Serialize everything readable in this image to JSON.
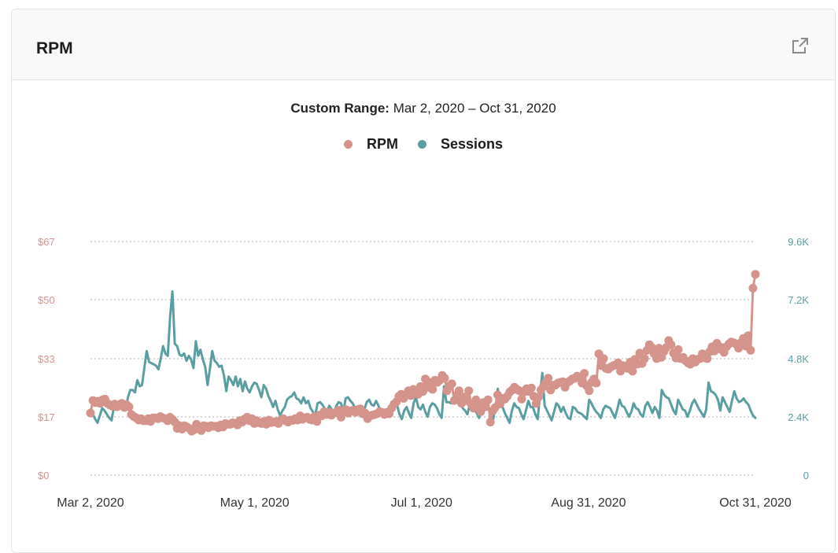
{
  "card": {
    "title": "RPM"
  },
  "icons": {
    "expand": "external-link-icon"
  },
  "range": {
    "label": "Custom Range:",
    "value": "Mar 2, 2020 – Oct 31, 2020"
  },
  "colors": {
    "rpm": "#d4948c",
    "sessions": "#5a9ea2",
    "grid": "#cccccc"
  },
  "chart_data": {
    "type": "line",
    "x_start": "2020-03-02",
    "x_end": "2020-10-31",
    "x_ticks": [
      "Mar 2, 2020",
      "May 1, 2020",
      "Jul 1, 2020",
      "Aug 31, 2020",
      "Oct 31, 2020"
    ],
    "y_left": {
      "ticks": [
        "$0",
        "$17",
        "$33",
        "$50",
        "$67"
      ],
      "range": [
        0,
        67
      ]
    },
    "y_right": {
      "ticks": [
        "0",
        "2.4K",
        "4.8K",
        "7.2K",
        "9.6K"
      ],
      "range": [
        0,
        9600
      ]
    },
    "grid": true,
    "legend_position": "top-center",
    "series": [
      {
        "name": "RPM",
        "axis": "left",
        "markers": true,
        "values": [
          17.8,
          21.4,
          20.8,
          21.2,
          20.6,
          21.6,
          21.8,
          20.6,
          20.1,
          19.8,
          20.4,
          19.6,
          20.2,
          20.6,
          19.4,
          20.2,
          19.6,
          17.4,
          16.8,
          16.4,
          15.8,
          16.2,
          15.6,
          15.6,
          16.2,
          15.4,
          16.4,
          16.4,
          16.2,
          16.8,
          16.4,
          16.2,
          15.6,
          16.6,
          16.0,
          15.2,
          13.4,
          14.2,
          13.2,
          14.2,
          13.8,
          13.4,
          12.6,
          13.0,
          14.6,
          13.6,
          12.8,
          14.2,
          14.0,
          13.6,
          14.2,
          14.0,
          14.0,
          13.6,
          14.4,
          13.8,
          14.8,
          14.6,
          14.6,
          15.0,
          14.8,
          14.4,
          15.6,
          15.2,
          16.1,
          16.6,
          15.6,
          16.2,
          14.8,
          15.6,
          15.0,
          14.8,
          15.4,
          14.6,
          15.8,
          15.1,
          15.2,
          15.4,
          14.8,
          15.8,
          16.2,
          15.6,
          15.2,
          15.8,
          15.7,
          16.2,
          15.8,
          17.0,
          16.0,
          16.4,
          16.6,
          16.0,
          15.8,
          16.8,
          15.4,
          17.2,
          17.0,
          18.2,
          17.4,
          18.0,
          17.2,
          17.8,
          18.0,
          18.6,
          16.6,
          18.4,
          18.8,
          17.8,
          18.4,
          18.6,
          18.0,
          18.8,
          19.0,
          17.6,
          17.8,
          16.2,
          17.0,
          17.2,
          17.4,
          17.6,
          18.2,
          18.0,
          17.4,
          18.0,
          17.6,
          19.2,
          20.4,
          21.0,
          22.6,
          23.2,
          22.0,
          23.0,
          24.2,
          22.8,
          24.6,
          24.2,
          23.2,
          25.4,
          24.0,
          27.6,
          25.2,
          26.6,
          24.6,
          27.2,
          26.6,
          27.2,
          28.6,
          27.8,
          24.2,
          25.6,
          26.2,
          21.4,
          22.8,
          24.2,
          20.6,
          22.4,
          21.4,
          24.2,
          20.4,
          19.2,
          21.6,
          19.8,
          18.2,
          20.8,
          19.6,
          21.6,
          15.2,
          18.4,
          19.4,
          23.0,
          20.4,
          22.0,
          21.8,
          22.6,
          23.8,
          24.4,
          25.2,
          24.6,
          24.2,
          21.8,
          23.8,
          24.8,
          24.0,
          25.0,
          22.6,
          20.6,
          22.4,
          24.4,
          25.4,
          26.6,
          27.8,
          24.4,
          25.8,
          25.8,
          26.4,
          26.6,
          26.8,
          25.2,
          26.6,
          27.0,
          27.6,
          27.8,
          28.4,
          27.8,
          26.4,
          29.2,
          25.6,
          24.2,
          26.6,
          27.6,
          26.4,
          34.8,
          31.4,
          33.4,
          30.6,
          30.4,
          31.0,
          31.4,
          31.6,
          32.2,
          29.8,
          31.4,
          31.0,
          30.6,
          32.4,
          29.8,
          33.2,
          31.8,
          35.0,
          32.0,
          33.4,
          35.8,
          37.4,
          36.6,
          34.8,
          33.4,
          36.4,
          33.8,
          35.4,
          36.6,
          38.6,
          37.4,
          35.0,
          33.6,
          36.0,
          33.4,
          33.8,
          32.8,
          32.2,
          31.8,
          33.4,
          32.4,
          33.2,
          33.4,
          34.8,
          33.6,
          33.4,
          35.4,
          36.8,
          35.6,
          37.8,
          36.2,
          36.6,
          35.2,
          36.8,
          37.6,
          38.2,
          38.0,
          37.6,
          36.4,
          38.0,
          39.2,
          37.0,
          40.0,
          35.8,
          53.6,
          57.6
        ]
      },
      {
        "name": "Sessions",
        "axis": "right",
        "markers": false,
        "values": [
          2700,
          2500,
          2300,
          2150,
          2450,
          2750,
          2650,
          2500,
          2350,
          2250,
          2800,
          3000,
          2700,
          2900,
          2750,
          2650,
          3200,
          3500,
          3500,
          3400,
          3900,
          3650,
          3700,
          4400,
          5100,
          4650,
          4600,
          4550,
          4500,
          4350,
          4800,
          5300,
          5000,
          4900,
          6500,
          7550,
          5400,
          5300,
          4950,
          4900,
          5000,
          4700,
          4900,
          4750,
          4400,
          5500,
          4900,
          5150,
          4750,
          4450,
          3700,
          4350,
          5100,
          4700,
          4600,
          4450,
          4500,
          4100,
          3450,
          4050,
          3900,
          3700,
          4050,
          3650,
          3950,
          3450,
          3850,
          3550,
          3400,
          3650,
          3800,
          3750,
          3500,
          3200,
          3700,
          3550,
          3250,
          3050,
          2800,
          3050,
          2700,
          2450,
          2650,
          2800,
          3100,
          3200,
          3250,
          3400,
          3150,
          3100,
          2950,
          3200,
          2950,
          3050,
          2750,
          2600,
          2450,
          2950,
          3000,
          2900,
          2750,
          2600,
          2850,
          2700,
          2550,
          2850,
          3000,
          2950,
          2600,
          3150,
          3200,
          3050,
          2950,
          2750,
          2600,
          2500,
          2500,
          2700,
          3000,
          3100,
          2900,
          2850,
          3050,
          2850,
          2600,
          2400,
          2700,
          2650,
          2500,
          2800,
          3000,
          2850,
          2500,
          2300,
          2650,
          2800,
          2550,
          2350,
          2950,
          3200,
          2800,
          2700,
          2900,
          2600,
          2400,
          2800,
          2950,
          2900,
          2750,
          2500,
          2350,
          3650,
          3000,
          3000,
          2950,
          3150,
          3200,
          3250,
          3000,
          2750,
          2650,
          2500,
          2900,
          2850,
          2700,
          2550,
          2350,
          2750,
          2900,
          2800,
          2700,
          2500,
          2300,
          2800,
          3550,
          2850,
          2800,
          2550,
          2350,
          2150,
          2650,
          2950,
          2800,
          2750,
          2500,
          2300,
          2650,
          3050,
          2800,
          2800,
          2500,
          2300,
          3300,
          4200,
          2850,
          2650,
          2450,
          2250,
          2600,
          2950,
          2850,
          2600,
          2800,
          2550,
          2350,
          2300,
          2800,
          2750,
          2600,
          2550,
          2500,
          2400,
          2300,
          3100,
          2950,
          2750,
          2600,
          2500,
          2350,
          2700,
          2850,
          2800,
          2750,
          2550,
          2350,
          2700,
          3100,
          2850,
          2800,
          2600,
          2400,
          2600,
          2950,
          2750,
          2700,
          2500,
          2400,
          2850,
          3000,
          2800,
          2550,
          2800,
          2650,
          2350,
          3500,
          3300,
          3200,
          3150,
          2900,
          2650,
          2500,
          3100,
          2900,
          2700,
          2650,
          2400,
          2650,
          2950,
          3100,
          2900,
          2700,
          2550,
          2400,
          2700,
          3800,
          3450,
          3400,
          3300,
          3100,
          2650,
          3200,
          3000,
          2800,
          2600,
          3050,
          3450,
          3150,
          3000,
          3050,
          3150,
          3000,
          2900,
          2650,
          2450,
          2350
        ]
      }
    ]
  }
}
